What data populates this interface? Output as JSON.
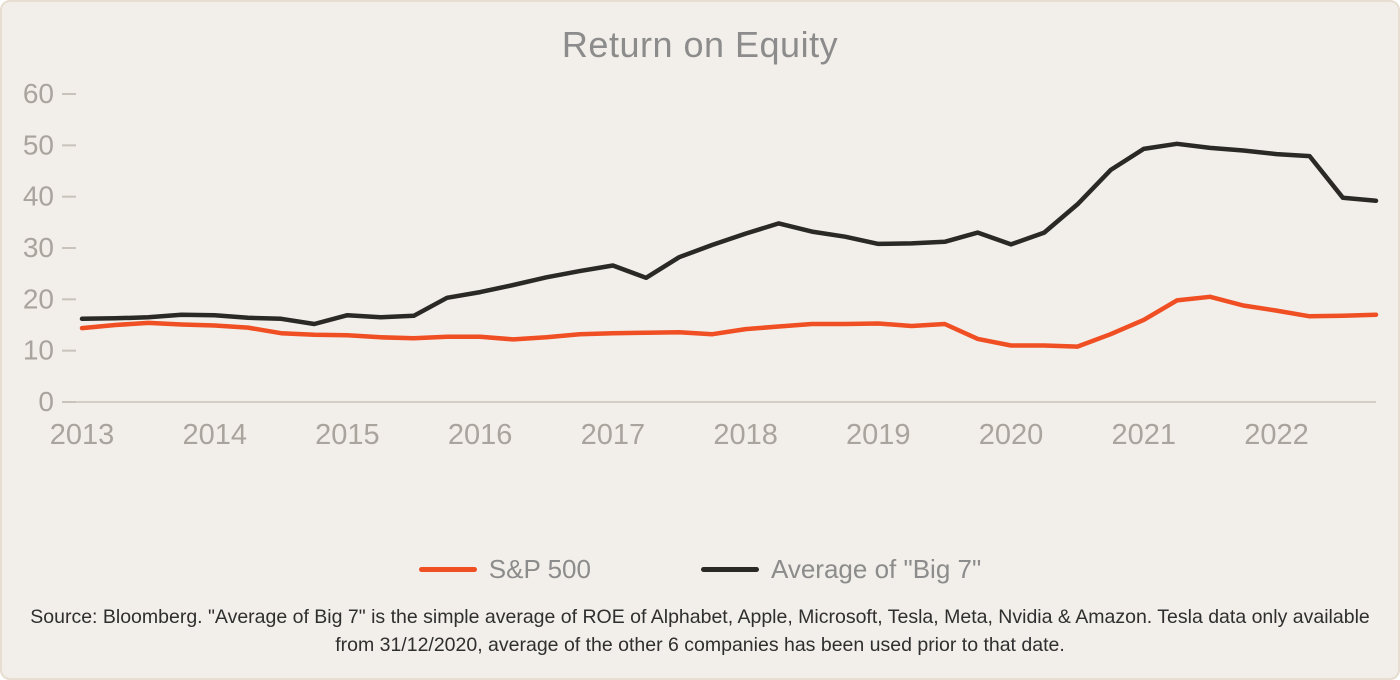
{
  "chart_data": {
    "type": "line",
    "title": "Return on Equity",
    "x": [
      2013,
      2013.25,
      2013.5,
      2013.75,
      2014,
      2014.25,
      2014.5,
      2014.75,
      2015,
      2015.25,
      2015.5,
      2015.75,
      2016,
      2016.25,
      2016.5,
      2016.75,
      2017,
      2017.25,
      2017.5,
      2017.75,
      2018,
      2018.25,
      2018.5,
      2018.75,
      2019,
      2019.25,
      2019.5,
      2019.75,
      2020,
      2020.25,
      2020.5,
      2020.75,
      2021,
      2021.25,
      2021.5,
      2021.75,
      2022,
      2022.25,
      2022.5,
      2022.75
    ],
    "series": [
      {
        "id": "sp500",
        "name": "S&P 500",
        "color": "#F04E23",
        "values": [
          14.4,
          15.0,
          15.4,
          15.1,
          14.9,
          14.5,
          13.4,
          13.1,
          13.0,
          12.6,
          12.4,
          12.7,
          12.7,
          12.2,
          12.6,
          13.2,
          13.4,
          13.5,
          13.6,
          13.2,
          14.2,
          14.7,
          15.2,
          15.2,
          15.3,
          14.8,
          15.2,
          12.3,
          11.0,
          11.0,
          10.8,
          13.2,
          16.0,
          19.8,
          20.5,
          18.8,
          17.8,
          16.7,
          16.8,
          17.0
        ]
      },
      {
        "id": "big7",
        "name": "Average of \"Big 7\"",
        "color": "#2B2926",
        "values": [
          16.2,
          16.3,
          16.5,
          17.0,
          16.9,
          16.4,
          16.2,
          15.2,
          16.9,
          16.5,
          16.8,
          20.3,
          21.4,
          22.8,
          24.3,
          25.5,
          26.6,
          24.2,
          28.2,
          30.6,
          32.8,
          34.8,
          33.2,
          32.2,
          30.8,
          30.9,
          31.2,
          33.0,
          30.7,
          33.0,
          38.5,
          45.2,
          49.3,
          50.3,
          49.5,
          49.0,
          48.3,
          47.9,
          39.8,
          39.2
        ]
      }
    ],
    "xlim": [
      2013,
      2022.75
    ],
    "ylim": [
      0,
      60
    ],
    "xticks": [
      2013,
      2014,
      2015,
      2016,
      2017,
      2018,
      2019,
      2020,
      2021,
      2022
    ],
    "yticks": [
      0,
      10,
      20,
      30,
      40,
      50,
      60
    ],
    "xlabel": "",
    "ylabel": "",
    "grid": "off",
    "legend_position": "bottom-center",
    "axis_color": "#C9C3BB",
    "tick_color": "#A9A49D",
    "line_width": 4.5
  },
  "legend": {
    "items": [
      {
        "label": "S&P 500"
      },
      {
        "label": "Average of \"Big 7\""
      }
    ]
  },
  "footnote": "Source: Bloomberg. \"Average of Big 7\" is the simple average of ROE of Alphabet, Apple, Microsoft, Tesla, Meta, Nvidia & Amazon. Tesla data only available from 31/12/2020, average of the other 6 companies has been used prior to that date.",
  "colors": {
    "card_background": "#F2EEE9",
    "card_border": "#E7DDD1",
    "title_text": "#8C8C8C",
    "tick_text": "#A9A49D",
    "footnote_text": "#2F2F2F",
    "sp500_line": "#F04E23",
    "big7_line": "#2B2926"
  }
}
